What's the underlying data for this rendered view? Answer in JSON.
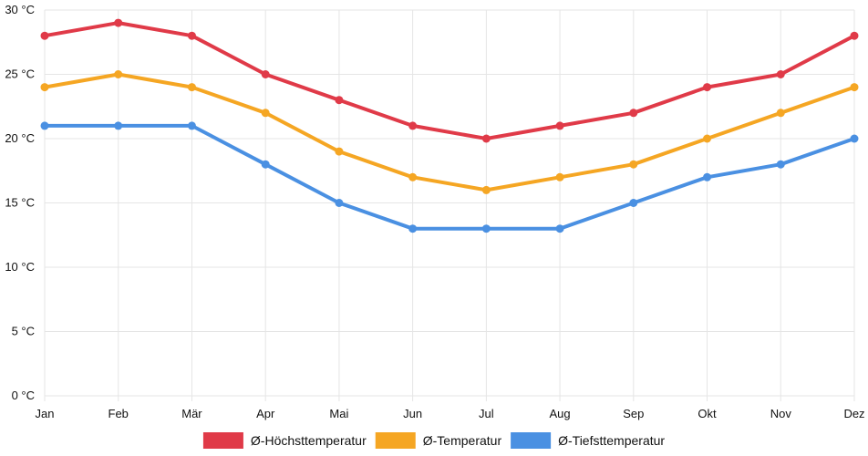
{
  "chart_data": {
    "type": "line",
    "categories": [
      "Jan",
      "Feb",
      "Mär",
      "Apr",
      "Mai",
      "Jun",
      "Jul",
      "Aug",
      "Sep",
      "Okt",
      "Nov",
      "Dez"
    ],
    "yticks": [
      "0 °C",
      "5 °C",
      "10 °C",
      "15 °C",
      "20 °C",
      "25 °C",
      "30 °C"
    ],
    "ylim": [
      0,
      30
    ],
    "ystep": 5,
    "unit": "°C",
    "grid": true,
    "legend_position": "bottom",
    "series": [
      {
        "name": "Ø-Höchsttemperatur",
        "color": "#e03a48",
        "values": [
          28,
          29,
          28,
          25,
          23,
          21,
          20,
          21,
          22,
          24,
          25,
          28
        ]
      },
      {
        "name": "Ø-Temperatur",
        "color": "#f5a623",
        "values": [
          24,
          25,
          24,
          22,
          19,
          17,
          16,
          17,
          18,
          20,
          22,
          24
        ]
      },
      {
        "name": "Ø-Tiefsttemperatur",
        "color": "#4a90e2",
        "values": [
          21,
          21,
          21,
          18,
          15,
          13,
          13,
          13,
          15,
          17,
          18,
          20
        ]
      }
    ]
  }
}
